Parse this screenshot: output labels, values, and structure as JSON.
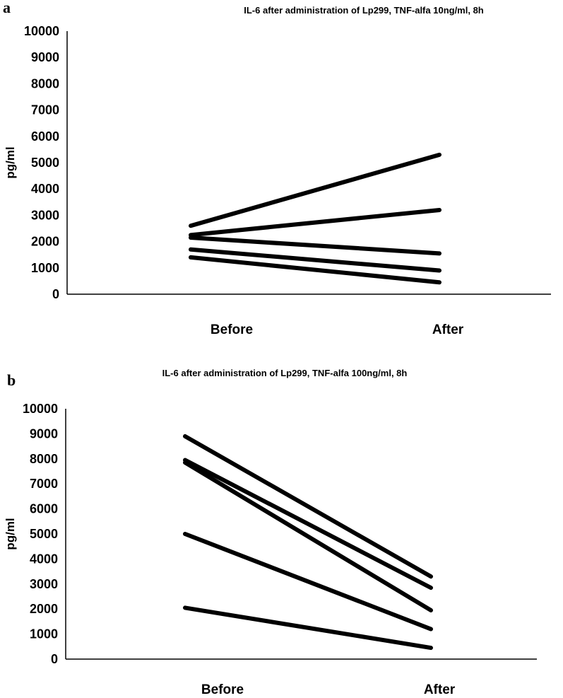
{
  "chart_data": [
    {
      "panel": "a",
      "type": "line",
      "title": "IL-6 after administration of Lp299, TNF-alfa 10ng/ml, 8h",
      "ylabel": "pg/ml",
      "xlabel": "",
      "categories": [
        "Before",
        "After"
      ],
      "ylim": [
        0,
        10000
      ],
      "yticks": [
        0,
        1000,
        2000,
        3000,
        4000,
        5000,
        6000,
        7000,
        8000,
        9000,
        10000
      ],
      "grid": false,
      "series": [
        {
          "values": [
            2600,
            5300
          ]
        },
        {
          "values": [
            2250,
            3200
          ]
        },
        {
          "values": [
            2150,
            1550
          ]
        },
        {
          "values": [
            1700,
            900
          ]
        },
        {
          "values": [
            1400,
            450
          ]
        }
      ]
    },
    {
      "panel": "b",
      "type": "line",
      "title": "IL-6 after administration of Lp299, TNF-alfa 100ng/ml, 8h",
      "ylabel": "pg/ml",
      "xlabel": "",
      "categories": [
        "Before",
        "After"
      ],
      "ylim": [
        0,
        10000
      ],
      "yticks": [
        0,
        1000,
        2000,
        3000,
        4000,
        5000,
        6000,
        7000,
        8000,
        9000,
        10000
      ],
      "grid": false,
      "series": [
        {
          "values": [
            8900,
            3300
          ]
        },
        {
          "values": [
            7950,
            2850
          ]
        },
        {
          "values": [
            7850,
            1950
          ]
        },
        {
          "values": [
            5000,
            1200
          ]
        },
        {
          "values": [
            2050,
            450
          ]
        }
      ]
    }
  ]
}
